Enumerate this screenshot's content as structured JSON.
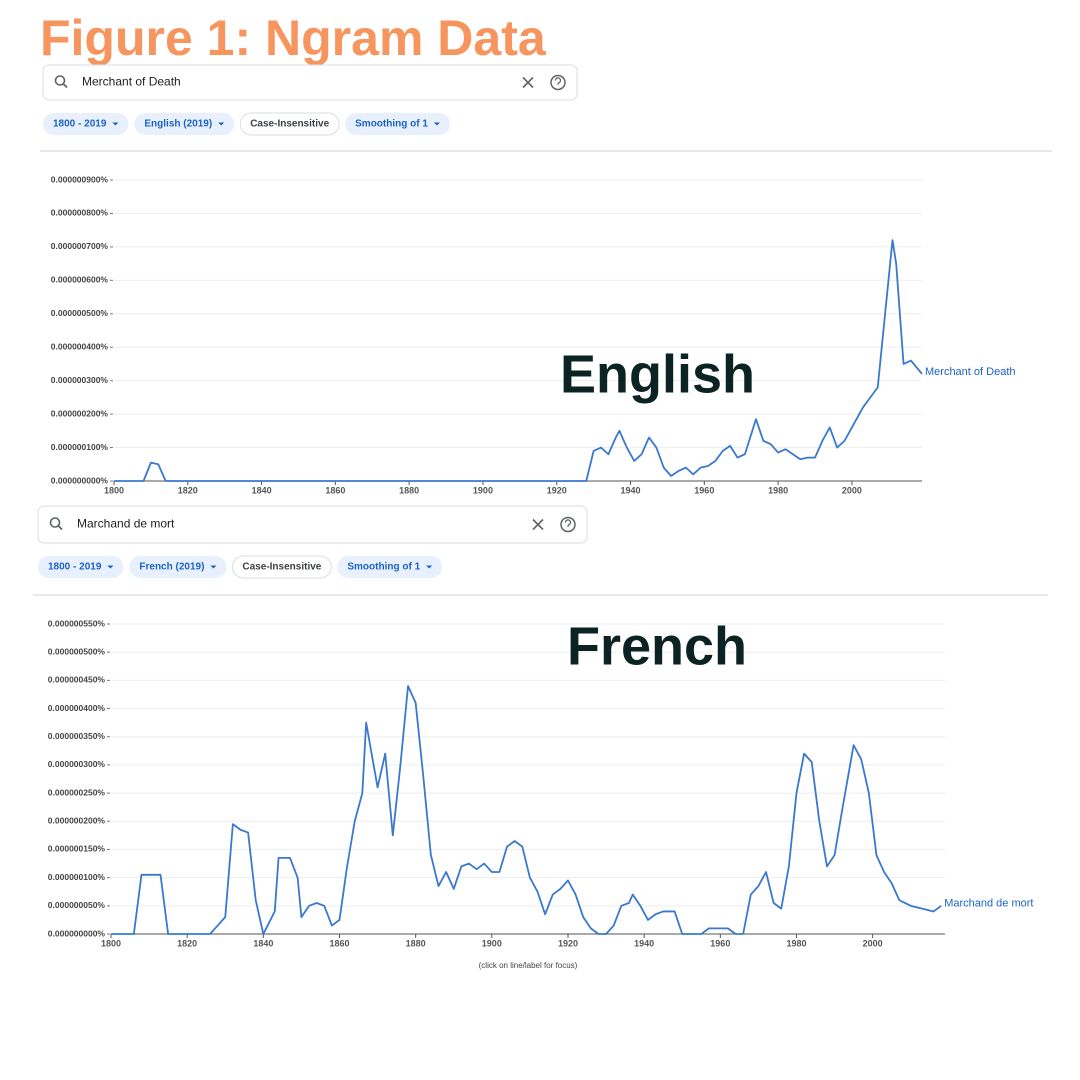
{
  "title": "Figure 1: Ngram Data",
  "chart_data": [
    {
      "type": "line",
      "query": "Merchant of Death",
      "filters": [
        "1800 - 2019",
        "English (2019)",
        "Case-Insensitive",
        "Smoothing of 1"
      ],
      "annotation": "English",
      "x": [
        1800,
        1808,
        1810,
        1812,
        1814,
        1928,
        1930,
        1932,
        1934,
        1936,
        1937,
        1939,
        1941,
        1943,
        1945,
        1947,
        1949,
        1951,
        1953,
        1955,
        1957,
        1959,
        1961,
        1963,
        1965,
        1967,
        1969,
        1971,
        1974,
        1976,
        1978,
        1980,
        1982,
        1984,
        1986,
        1988,
        1990,
        1992,
        1994,
        1996,
        1998,
        2000,
        2003,
        2005,
        2007,
        2009,
        2011,
        2012,
        2014,
        2016,
        2019
      ],
      "series": [
        {
          "name": "Merchant of Death",
          "color": "#3a78d0",
          "values": [
            0,
            0,
            5.5e-08,
            5e-08,
            0,
            0,
            9e-08,
            1e-07,
            8e-08,
            1.3e-07,
            1.5e-07,
            1e-07,
            6e-08,
            8e-08,
            1.3e-07,
            1e-07,
            4e-08,
            1.5e-08,
            3e-08,
            4e-08,
            2e-08,
            4e-08,
            4.5e-08,
            6e-08,
            9e-08,
            1.05e-07,
            7e-08,
            8e-08,
            1.85e-07,
            1.2e-07,
            1.1e-07,
            8.5e-08,
            9.5e-08,
            8e-08,
            6.5e-08,
            7e-08,
            7e-08,
            1.2e-07,
            1.6e-07,
            1e-07,
            1.2e-07,
            1.6e-07,
            2.2e-07,
            2.5e-07,
            2.8e-07,
            5e-07,
            7.2e-07,
            6.5e-07,
            3.5e-07,
            3.6e-07,
            3.2e-07
          ]
        }
      ],
      "xlim": [
        1800,
        2019
      ],
      "xticks": [
        1800,
        1820,
        1840,
        1860,
        1880,
        1900,
        1920,
        1940,
        1960,
        1980,
        2000
      ],
      "ylim": [
        0,
        9e-07
      ],
      "yticks": [
        {
          "value": 0,
          "label": "0.000000000%"
        },
        {
          "value": 1e-07,
          "label": "0.000000100%"
        },
        {
          "value": 2e-07,
          "label": "0.000000200%"
        },
        {
          "value": 3e-07,
          "label": "0.000000300%"
        },
        {
          "value": 4e-07,
          "label": "0.000000400%"
        },
        {
          "value": 5e-07,
          "label": "0.000000500%"
        },
        {
          "value": 6e-07,
          "label": "0.000000600%"
        },
        {
          "value": 7e-07,
          "label": "0.000000700%"
        },
        {
          "value": 8e-07,
          "label": "0.000000800%"
        },
        {
          "value": 9e-07,
          "label": "0.000000900%"
        }
      ],
      "grid": true
    },
    {
      "type": "line",
      "query": "Marchand de mort",
      "filters": [
        "1800 - 2019",
        "French (2019)",
        "Case-Insensitive",
        "Smoothing of 1"
      ],
      "annotation": "French",
      "x": [
        1800,
        1806,
        1808,
        1813,
        1815,
        1826,
        1828,
        1830,
        1832,
        1834,
        1836,
        1838,
        1840,
        1843,
        1844,
        1847,
        1849,
        1850,
        1852,
        1854,
        1856,
        1858,
        1860,
        1862,
        1864,
        1866,
        1867,
        1870,
        1872,
        1874,
        1876,
        1878,
        1880,
        1882,
        1884,
        1886,
        1888,
        1890,
        1892,
        1894,
        1896,
        1898,
        1900,
        1902,
        1904,
        1906,
        1908,
        1910,
        1912,
        1914,
        1916,
        1918,
        1920,
        1922,
        1924,
        1926,
        1928,
        1930,
        1932,
        1934,
        1936,
        1937,
        1939,
        1941,
        1943,
        1945,
        1948,
        1950,
        1955,
        1957,
        1962,
        1964,
        1966,
        1968,
        1970,
        1972,
        1974,
        1976,
        1978,
        1980,
        1982,
        1984,
        1986,
        1988,
        1990,
        1992,
        1995,
        1997,
        1999,
        2001,
        2003,
        2005,
        2007,
        2010,
        2013,
        2016,
        2018
      ],
      "series": [
        {
          "name": "Marchand de mort",
          "color": "#3a78d0",
          "values": [
            0,
            0,
            1.05e-07,
            1.05e-07,
            0,
            0,
            1.5e-08,
            3e-08,
            1.95e-07,
            1.85e-07,
            1.8e-07,
            6e-08,
            0,
            4e-08,
            1.35e-07,
            1.35e-07,
            1e-07,
            3e-08,
            5e-08,
            5.5e-08,
            5e-08,
            1.5e-08,
            2.5e-08,
            1.2e-07,
            2e-07,
            2.5e-07,
            3.75e-07,
            2.6e-07,
            3.2e-07,
            1.75e-07,
            3e-07,
            4.4e-07,
            4.1e-07,
            2.8e-07,
            1.4e-07,
            8.5e-08,
            1.1e-07,
            8e-08,
            1.2e-07,
            1.25e-07,
            1.15e-07,
            1.25e-07,
            1.1e-07,
            1.1e-07,
            1.55e-07,
            1.65e-07,
            1.55e-07,
            1e-07,
            7.5e-08,
            3.5e-08,
            7e-08,
            8e-08,
            9.5e-08,
            7e-08,
            3e-08,
            1e-08,
            0,
            0,
            1.5e-08,
            5e-08,
            5.5e-08,
            7e-08,
            5e-08,
            2.5e-08,
            3.5e-08,
            4e-08,
            4e-08,
            0,
            0,
            1e-08,
            1e-08,
            0,
            0,
            7e-08,
            8.5e-08,
            1.1e-07,
            5.5e-08,
            4.5e-08,
            1.2e-07,
            2.5e-07,
            3.2e-07,
            3.05e-07,
            2e-07,
            1.2e-07,
            1.4e-07,
            2.2e-07,
            3.35e-07,
            3.1e-07,
            2.5e-07,
            1.4e-07,
            1.1e-07,
            9e-08,
            6e-08,
            5e-08,
            4.5e-08,
            4e-08,
            5e-08
          ]
        }
      ],
      "xlim": [
        1800,
        2019
      ],
      "xticks": [
        1800,
        1820,
        1840,
        1860,
        1880,
        1900,
        1920,
        1940,
        1960,
        1980,
        2000
      ],
      "ylim": [
        0,
        5.5e-07
      ],
      "yticks": [
        {
          "value": 0,
          "label": "0.000000000%"
        },
        {
          "value": 5e-08,
          "label": "0.000000050%"
        },
        {
          "value": 1e-07,
          "label": "0.000000100%"
        },
        {
          "value": 1.5e-07,
          "label": "0.000000150%"
        },
        {
          "value": 2e-07,
          "label": "0.000000200%"
        },
        {
          "value": 2.5e-07,
          "label": "0.000000250%"
        },
        {
          "value": 3e-07,
          "label": "0.000000300%"
        },
        {
          "value": 3.5e-07,
          "label": "0.000000350%"
        },
        {
          "value": 4e-07,
          "label": "0.000000400%"
        },
        {
          "value": 4.5e-07,
          "label": "0.000000450%"
        },
        {
          "value": 5e-07,
          "label": "0.000000500%"
        },
        {
          "value": 5.5e-07,
          "label": "0.000000550%"
        }
      ],
      "grid": true
    }
  ],
  "footnote": "(click on line/label for focus)"
}
